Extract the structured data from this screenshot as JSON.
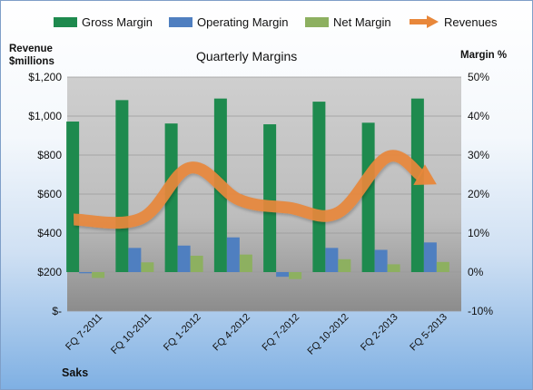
{
  "legend": [
    {
      "label": "Gross Margin",
      "color": "#1e8a4e",
      "kind": "bar"
    },
    {
      "label": "Operating Margin",
      "color": "#4f7fc0",
      "kind": "bar"
    },
    {
      "label": "Net Margin",
      "color": "#8db060",
      "kind": "bar"
    },
    {
      "label": "Revenues",
      "color": "#e8873a",
      "kind": "arrow"
    }
  ],
  "chart_data": {
    "type": "bar",
    "title": "Quarterly Margins",
    "left_axis_title": "Revenue $millions",
    "right_axis_title": "Margin %",
    "company_label": "Saks",
    "categories": [
      "FQ 7-2011",
      "FQ 10-2011",
      "FQ 1-2012",
      "FQ 4-2012",
      "FQ 7-2012",
      "FQ 10-2012",
      "FQ 2-2013",
      "FQ 5-2013"
    ],
    "left_ticks": [
      "$-",
      "$200",
      "$400",
      "$600",
      "$800",
      "$1,000",
      "$1,200"
    ],
    "right_ticks": [
      "-10%",
      "0%",
      "10%",
      "20%",
      "30%",
      "40%",
      "50%"
    ],
    "ylim_left": [
      0,
      1200
    ],
    "ylim_right": [
      -10,
      50
    ],
    "series": [
      {
        "name": "Gross Margin",
        "axis": "right",
        "color": "#1e8a4e",
        "values": [
          38.6,
          44.1,
          38.1,
          44.5,
          37.9,
          43.7,
          38.3,
          44.5
        ]
      },
      {
        "name": "Operating Margin",
        "axis": "right",
        "color": "#4f7fc0",
        "values": [
          -0.3,
          6.2,
          6.8,
          8.9,
          -1.2,
          6.2,
          5.7,
          7.6
        ]
      },
      {
        "name": "Net Margin",
        "axis": "right",
        "color": "#8db060",
        "values": [
          -1.5,
          2.5,
          4.2,
          4.5,
          -1.8,
          3.3,
          2.0,
          2.6
        ]
      },
      {
        "name": "Revenues",
        "axis": "left",
        "type": "line",
        "color": "#e8873a",
        "values": [
          470,
          475,
          735,
          570,
          530,
          505,
          790,
          650
        ]
      }
    ]
  }
}
